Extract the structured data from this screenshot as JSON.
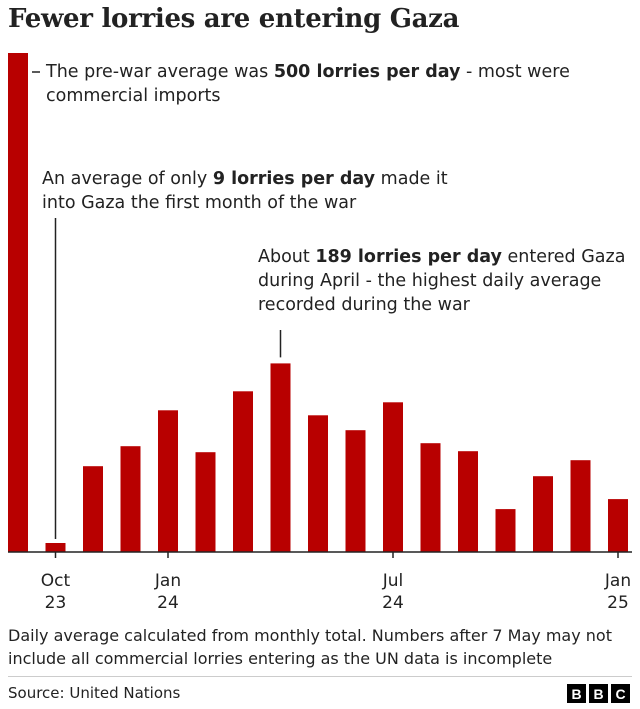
{
  "title": "Fewer lorries are entering Gaza",
  "annotations": {
    "prewar": {
      "pre": "The pre-war average was ",
      "bold": "500 lorries per day",
      "post": " - most were commercial imports"
    },
    "first_month": {
      "pre": "An average of only ",
      "bold": "9 lorries per day",
      "post": " made it into Gaza the first month of the war"
    },
    "april": {
      "pre": "About ",
      "bold": "189 lorries per day",
      "post": " entered Gaza during April - the highest daily average recorded during the war"
    }
  },
  "footnote": "Daily average calculated from monthly total. Numbers after 7 May may not include all commercial lorries entering as the UN data is incomplete",
  "source": "Source: United Nations",
  "logo": [
    "B",
    "B",
    "C"
  ],
  "colors": {
    "bar": "#b80000",
    "axis": "#222222",
    "text": "#222222"
  },
  "chart_data": {
    "type": "bar",
    "title": "Fewer lorries are entering Gaza",
    "xlabel": "",
    "ylabel": "",
    "categories": [
      "Pre-war",
      "Oct 23",
      "Nov 23",
      "Dec 23",
      "Jan 24",
      "Feb 24",
      "Mar 24",
      "Apr 24",
      "May 24",
      "Jun 24",
      "Jul 24",
      "Aug 24",
      "Sep 24",
      "Oct 24",
      "Nov 24",
      "Dec 24",
      "Jan 25"
    ],
    "values": [
      500,
      9,
      86,
      106,
      142,
      100,
      161,
      189,
      137,
      122,
      150,
      109,
      101,
      43,
      76,
      92,
      53
    ],
    "ylim": [
      0,
      500
    ],
    "x_tick_labels": [
      {
        "category": "Oct 23",
        "line1": "Oct",
        "line2": "23"
      },
      {
        "category": "Jan 24",
        "line1": "Jan",
        "line2": "24"
      },
      {
        "category": "Jul 24",
        "line1": "Jul",
        "line2": "24"
      },
      {
        "category": "Jan 25",
        "line1": "Jan",
        "line2": "25"
      }
    ],
    "grid": false,
    "legend": "none"
  }
}
